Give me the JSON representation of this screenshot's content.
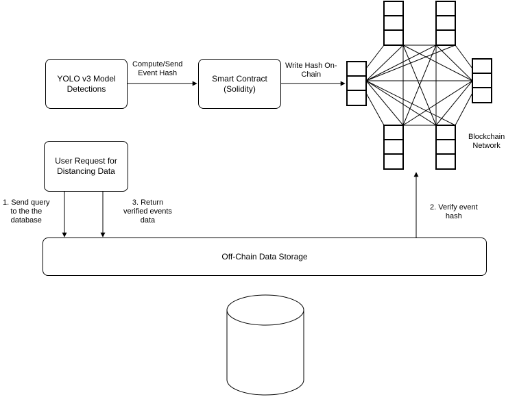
{
  "nodes": {
    "yolo": {
      "line1": "YOLO v3 Model",
      "line2": "Detections"
    },
    "smart_contract": {
      "line1": "Smart Contract",
      "line2": "(Solidity)"
    },
    "user_request": {
      "line1": "User Request for",
      "line2": "Distancing Data"
    },
    "storage": {
      "label": "Off-Chain Data Storage"
    },
    "blockchain": {
      "line1": "Blockchain",
      "line2": "Network"
    }
  },
  "edges": {
    "compute_send": {
      "line1": "Compute/Send",
      "line2": "Event Hash"
    },
    "write_hash": {
      "line1": "Write Hash On-",
      "line2": "Chain"
    },
    "send_query": {
      "line1": "1. Send query",
      "line2": "to the the",
      "line3": "database"
    },
    "return_verified": {
      "line1": "3. Return",
      "line2": "verified events",
      "line3": "data"
    },
    "verify_hash": {
      "line1": "2. Verify event",
      "line2": "hash"
    }
  }
}
